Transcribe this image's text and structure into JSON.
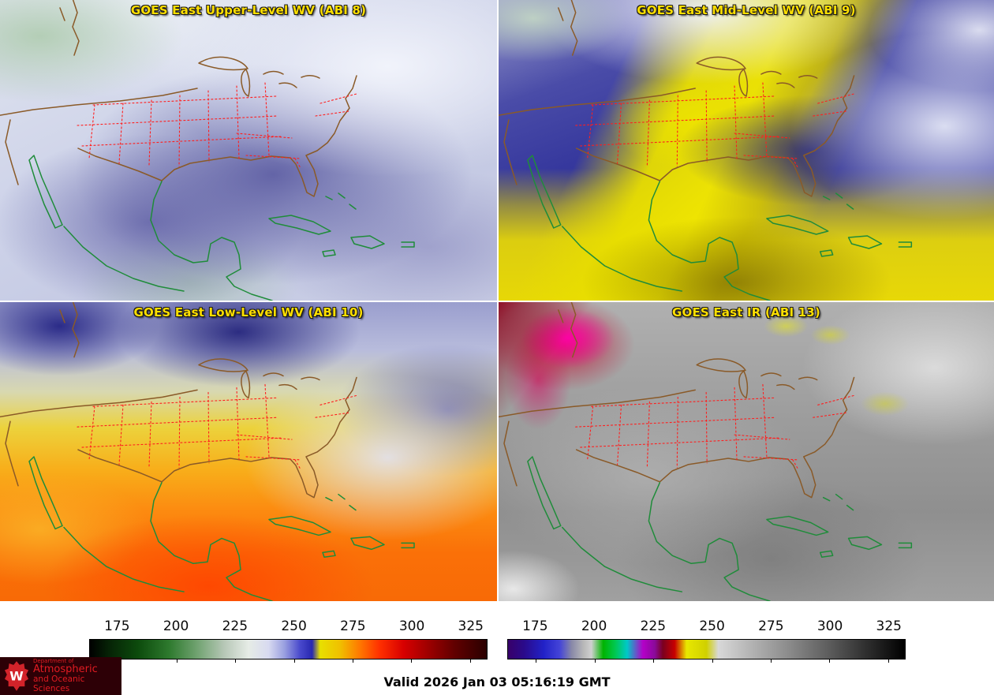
{
  "panels": [
    {
      "title": "GOES East Upper-Level WV (ABI 8)"
    },
    {
      "title": "GOES East Mid-Level WV (ABI 9)"
    },
    {
      "title": "GOES East Low-Level WV (ABI 10)"
    },
    {
      "title": "GOES East IR (ABI 13)"
    }
  ],
  "colorbars": [
    {
      "ticks": [
        {
          "label": "175",
          "pos": 7.0
        },
        {
          "label": "200",
          "pos": 21.8
        },
        {
          "label": "225",
          "pos": 36.6
        },
        {
          "label": "250",
          "pos": 51.4
        },
        {
          "label": "275",
          "pos": 66.2
        },
        {
          "label": "300",
          "pos": 81.0
        },
        {
          "label": "325",
          "pos": 95.8
        }
      ],
      "gradient": [
        "#000000 0%",
        "#062406 5%",
        "#0c4a0c 12%",
        "#2e7a2e 20%",
        "#7aa87a 28%",
        "#b8c8b8 34%",
        "#e6ece6 40%",
        "#d8daf0 45%",
        "#9aa0e0 49%",
        "#4848cc 53%",
        "#2828b0 56%",
        "#e8e000 58%",
        "#f0c000 63%",
        "#ff7800 68%",
        "#ff3000 73%",
        "#d80000 79%",
        "#a00000 85%",
        "#600000 92%",
        "#2a0000 100%"
      ]
    },
    {
      "ticks": [
        {
          "label": "175",
          "pos": 7.0
        },
        {
          "label": "200",
          "pos": 21.8
        },
        {
          "label": "225",
          "pos": 36.6
        },
        {
          "label": "250",
          "pos": 51.4
        },
        {
          "label": "275",
          "pos": 66.2
        },
        {
          "label": "300",
          "pos": 81.0
        },
        {
          "label": "325",
          "pos": 95.8
        }
      ],
      "gradient": [
        "#38006a 0%",
        "#2a0a8a 4%",
        "#2222c8 9%",
        "#4444d8 13%",
        "#8888a8 16%",
        "#b8b8b8 19%",
        "#d0d0d0 21%",
        "#00b400 24%",
        "#00c850 27%",
        "#00c8c8 30%",
        "#b400c8 34%",
        "#8a0a9a 37%",
        "#7a0020 39%",
        "#c80000 42%",
        "#e8e800 45%",
        "#d0d000 50%",
        "#d8d8d8 53%",
        "#b0b0b0 62%",
        "#8a8a8a 71%",
        "#5c5c5c 81%",
        "#303030 90%",
        "#000000 100%"
      ]
    }
  ],
  "footer": {
    "valid_time": "Valid 2026 Jan 03 05:16:19 GMT",
    "logo": {
      "letter": "W",
      "dept_small": "Department of",
      "line1": "Atmospheric",
      "line2": "and Oceanic Sciences"
    }
  },
  "colors": {
    "title_text": "#ffdf00",
    "state_boundaries": "#ff1e1e",
    "national_borders": "#8a5a28",
    "coastlines_mexico_caribbean": "#1f8c3a",
    "logo_background": "#2d0006",
    "logo_text": "#e11b22",
    "crest_red": "#d2232a",
    "valid_text": "#000000",
    "page_background": "#ffffff"
  }
}
